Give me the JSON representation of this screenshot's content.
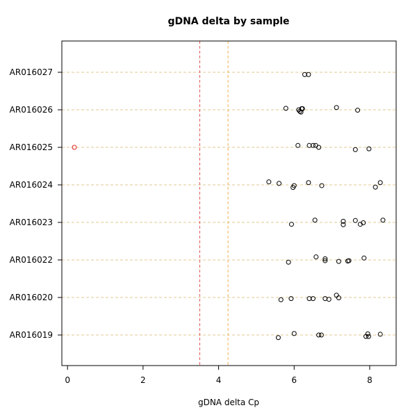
{
  "chart_data": {
    "type": "scatter",
    "title": "gDNA delta by sample",
    "xlabel": "gDNA delta Cp",
    "ylabel": "",
    "xlim": [
      -0.15,
      8.7
    ],
    "x_ticks": [
      0,
      2,
      4,
      6,
      8
    ],
    "x_tick_labels": [
      "0",
      "2",
      "4",
      "6",
      "8"
    ],
    "categories": [
      "AR016019",
      "AR016020",
      "AR016022",
      "AR016023",
      "AR016024",
      "AR016025",
      "AR016026",
      "AR016027"
    ],
    "grid": "horizontal dashed at each category",
    "colors": {
      "point": "#000000",
      "outlier": "#e02020",
      "vline_red": "#e05050",
      "vline_orange": "#f0b050",
      "grid": "#e0c890"
    },
    "reference_lines": [
      {
        "x": 3.5,
        "color": "#e05050"
      },
      {
        "x": 4.25,
        "color": "#f0b050"
      }
    ],
    "series": [
      {
        "category": "AR016019",
        "x": [
          5.58,
          6.0,
          6.65,
          6.72,
          7.9,
          7.95,
          7.97,
          8.28
        ],
        "jitter": [
          -0.07,
          0.04,
          0.0,
          0.0,
          -0.04,
          0.03,
          -0.04,
          0.02
        ]
      },
      {
        "category": "AR016020",
        "x": [
          5.65,
          5.92,
          6.4,
          6.5,
          6.82,
          6.92,
          7.12,
          7.18
        ],
        "jitter": [
          -0.06,
          -0.03,
          -0.03,
          -0.03,
          -0.03,
          -0.05,
          0.06,
          -0.01
        ]
      },
      {
        "category": "AR016022",
        "x": [
          5.85,
          6.58,
          6.82,
          6.82,
          7.18,
          7.42,
          7.45,
          7.85
        ],
        "jitter": [
          -0.06,
          0.08,
          0.03,
          -0.02,
          -0.04,
          -0.03,
          -0.02,
          0.05
        ]
      },
      {
        "category": "AR016023",
        "x": [
          5.93,
          6.55,
          7.3,
          7.3,
          7.62,
          7.75,
          7.83,
          8.35
        ],
        "jitter": [
          -0.05,
          0.06,
          0.03,
          -0.06,
          0.05,
          -0.05,
          -0.01,
          0.06
        ]
      },
      {
        "category": "AR016024",
        "x": [
          5.33,
          5.6,
          5.97,
          6.0,
          6.38,
          6.73,
          8.15,
          8.28
        ],
        "jitter": [
          0.08,
          0.04,
          -0.07,
          -0.02,
          0.06,
          -0.02,
          -0.06,
          0.06
        ]
      },
      {
        "category": "AR016025",
        "x": [
          0.18,
          6.1,
          6.4,
          6.5,
          6.57,
          6.65,
          7.62,
          7.98
        ],
        "jitter": [
          0.0,
          0.05,
          0.05,
          0.05,
          0.05,
          0.0,
          -0.06,
          -0.04
        ],
        "outlier_index": 0
      },
      {
        "category": "AR016026",
        "x": [
          5.78,
          6.12,
          6.15,
          6.18,
          6.2,
          6.22,
          7.12,
          7.68
        ],
        "jitter": [
          0.04,
          0.0,
          -0.04,
          -0.06,
          0.03,
          0.03,
          0.06,
          -0.01
        ]
      },
      {
        "category": "AR016027",
        "x": [
          6.28,
          6.38
        ],
        "jitter": [
          -0.06,
          -0.06
        ]
      }
    ]
  }
}
